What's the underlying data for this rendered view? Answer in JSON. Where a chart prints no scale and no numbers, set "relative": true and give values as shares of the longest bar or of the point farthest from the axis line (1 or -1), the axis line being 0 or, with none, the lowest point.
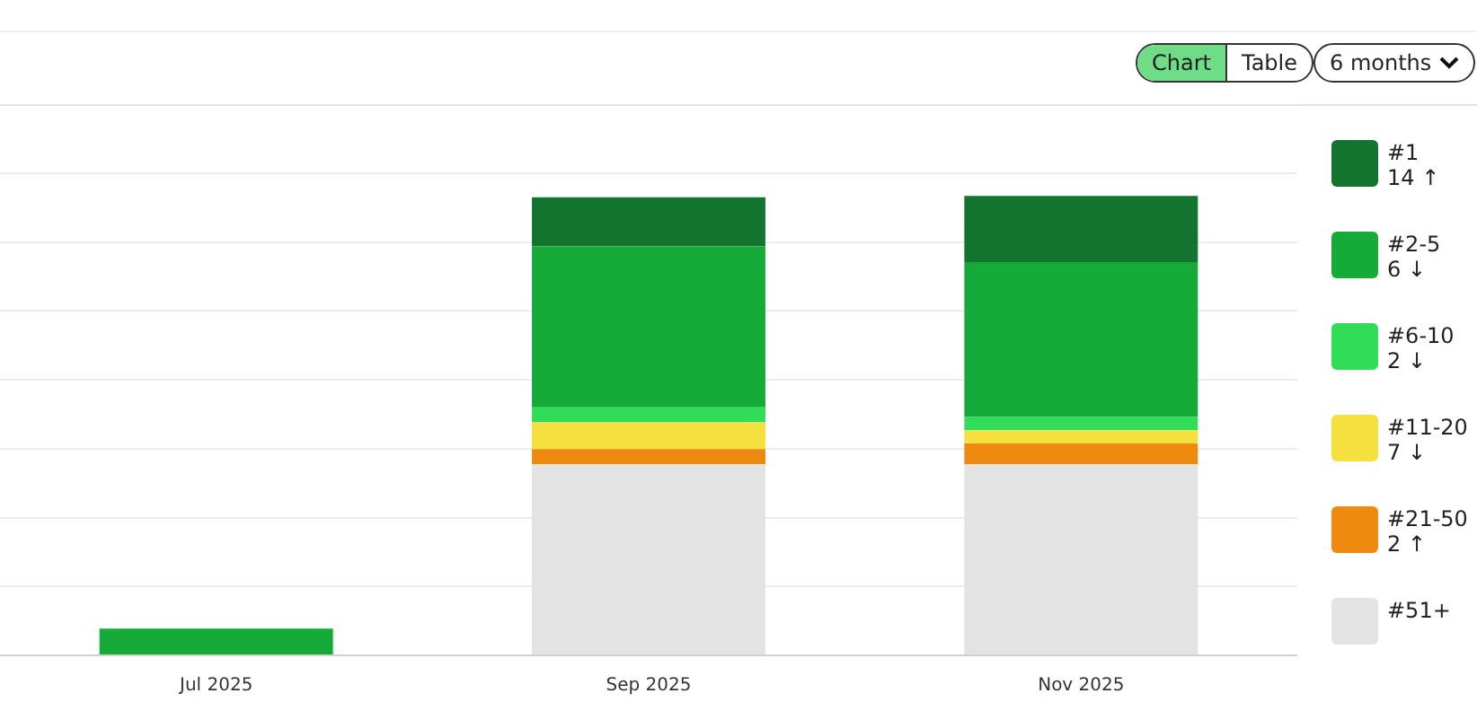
{
  "chart_data": {
    "type": "bar",
    "stacked": true,
    "relative": true,
    "grid": "y",
    "legend": "right",
    "categories": [
      "Jul 2025",
      "Sep 2025",
      "Nov 2025"
    ],
    "series": [
      {
        "name": "#51+",
        "color": "#e3e3e3",
        "values": [
          0,
          0.416,
          0.416
        ]
      },
      {
        "name": "#21-50",
        "color": "#ee8a10",
        "values": [
          0,
          0.033,
          0.045
        ]
      },
      {
        "name": "#11-20",
        "color": "#f5e040",
        "values": [
          0,
          0.058,
          0.029
        ]
      },
      {
        "name": "#6-10",
        "color": "#30dc58",
        "values": [
          0,
          0.033,
          0.029
        ]
      },
      {
        "name": "#2-5",
        "color": "#16ab38",
        "values": [
          0.058,
          0.35,
          0.337
        ]
      },
      {
        "name": "#1",
        "color": "#137430",
        "values": [
          0,
          0.107,
          0.144
        ]
      }
    ],
    "annotations": [
      "Chart",
      "Table",
      "6 months",
      "14 ↑",
      "6 ↓",
      "2 ↓",
      "7 ↓",
      "2 ↑"
    ]
  }
}
